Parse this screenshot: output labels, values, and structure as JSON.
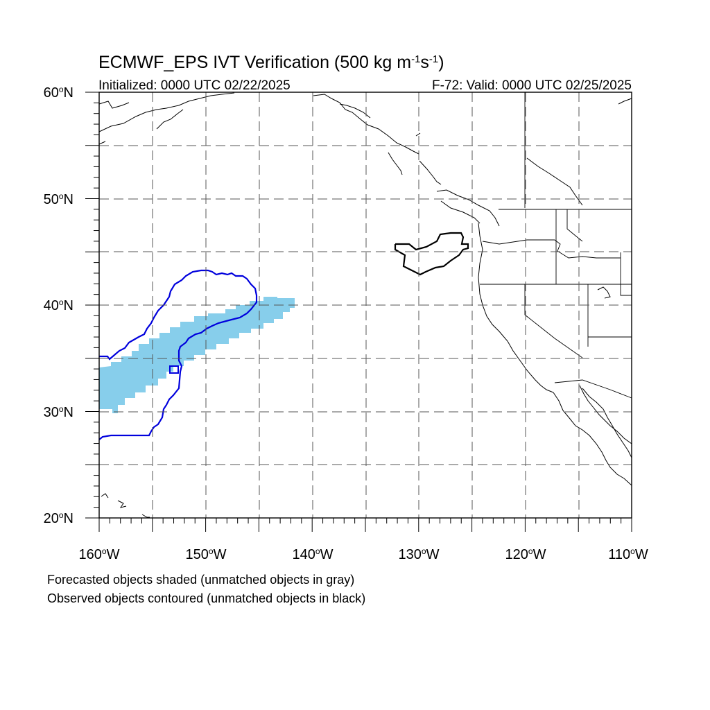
{
  "title": {
    "main": "ECMWF_EPS IVT Verification (500 kg m",
    "sup1": "-1",
    "mid": "s",
    "sup2": "-1",
    "end": ")"
  },
  "subtitle": {
    "left": "Initialized: 0000 UTC 02/22/2025",
    "right": "F-72: Valid: 0000 UTC 02/25/2025"
  },
  "axes": {
    "lon_range": [
      -160,
      -110
    ],
    "lat_range": [
      20,
      60
    ],
    "y_ticks": [
      {
        "label": "60",
        "deg": "o",
        "hem": "N"
      },
      {
        "label": "50",
        "deg": "o",
        "hem": "N"
      },
      {
        "label": "40",
        "deg": "o",
        "hem": "N"
      },
      {
        "label": "30",
        "deg": "o",
        "hem": "N"
      },
      {
        "label": "20",
        "deg": "o",
        "hem": "N"
      }
    ],
    "x_ticks": [
      {
        "label": "160",
        "deg": "o",
        "hem": "W"
      },
      {
        "label": "150",
        "deg": "o",
        "hem": "W"
      },
      {
        "label": "140",
        "deg": "o",
        "hem": "W"
      },
      {
        "label": "130",
        "deg": "o",
        "hem": "W"
      },
      {
        "label": "120",
        "deg": "o",
        "hem": "W"
      },
      {
        "label": "110",
        "deg": "o",
        "hem": "W"
      }
    ],
    "grid": "dashed, every 5 degrees"
  },
  "legend_notes": {
    "line1": "Forecasted objects shaded (unmatched objects in gray)",
    "line2": "Observed objects contoured (unmatched objects in black)"
  },
  "colors": {
    "forecast_matched": "#87ceeb",
    "observed_matched": "#0000dd",
    "observed_unmatched": "#000000",
    "grid": "#555555"
  }
}
